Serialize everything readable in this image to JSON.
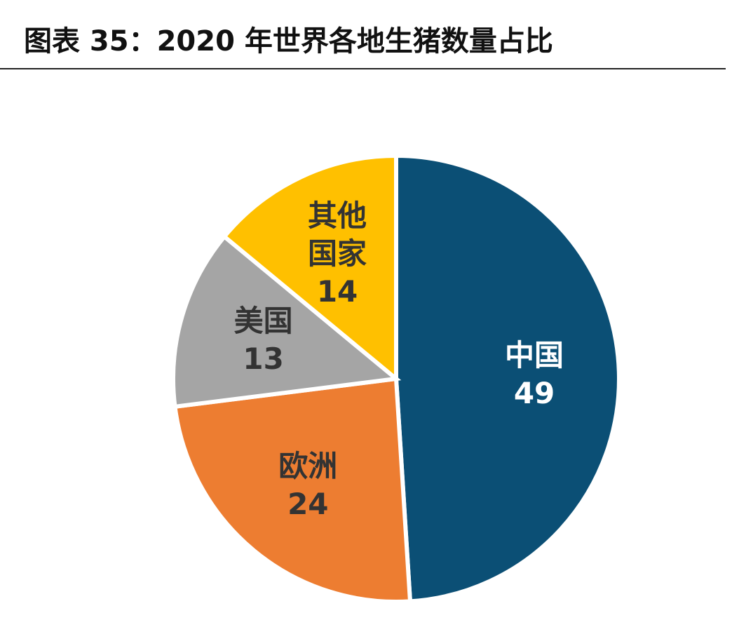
{
  "chart_data": {
    "type": "pie",
    "title": "图表 35：2020 年世界各地生猪数量占比",
    "categories": [
      "中国",
      "欧洲",
      "美国",
      "其他国家"
    ],
    "values": [
      49,
      24,
      13,
      14
    ],
    "colors": [
      "#0b4f75",
      "#ed7d31",
      "#a5a5a5",
      "#ffc000"
    ],
    "label_colors": [
      "#ffffff",
      "#333333",
      "#333333",
      "#333333"
    ]
  }
}
